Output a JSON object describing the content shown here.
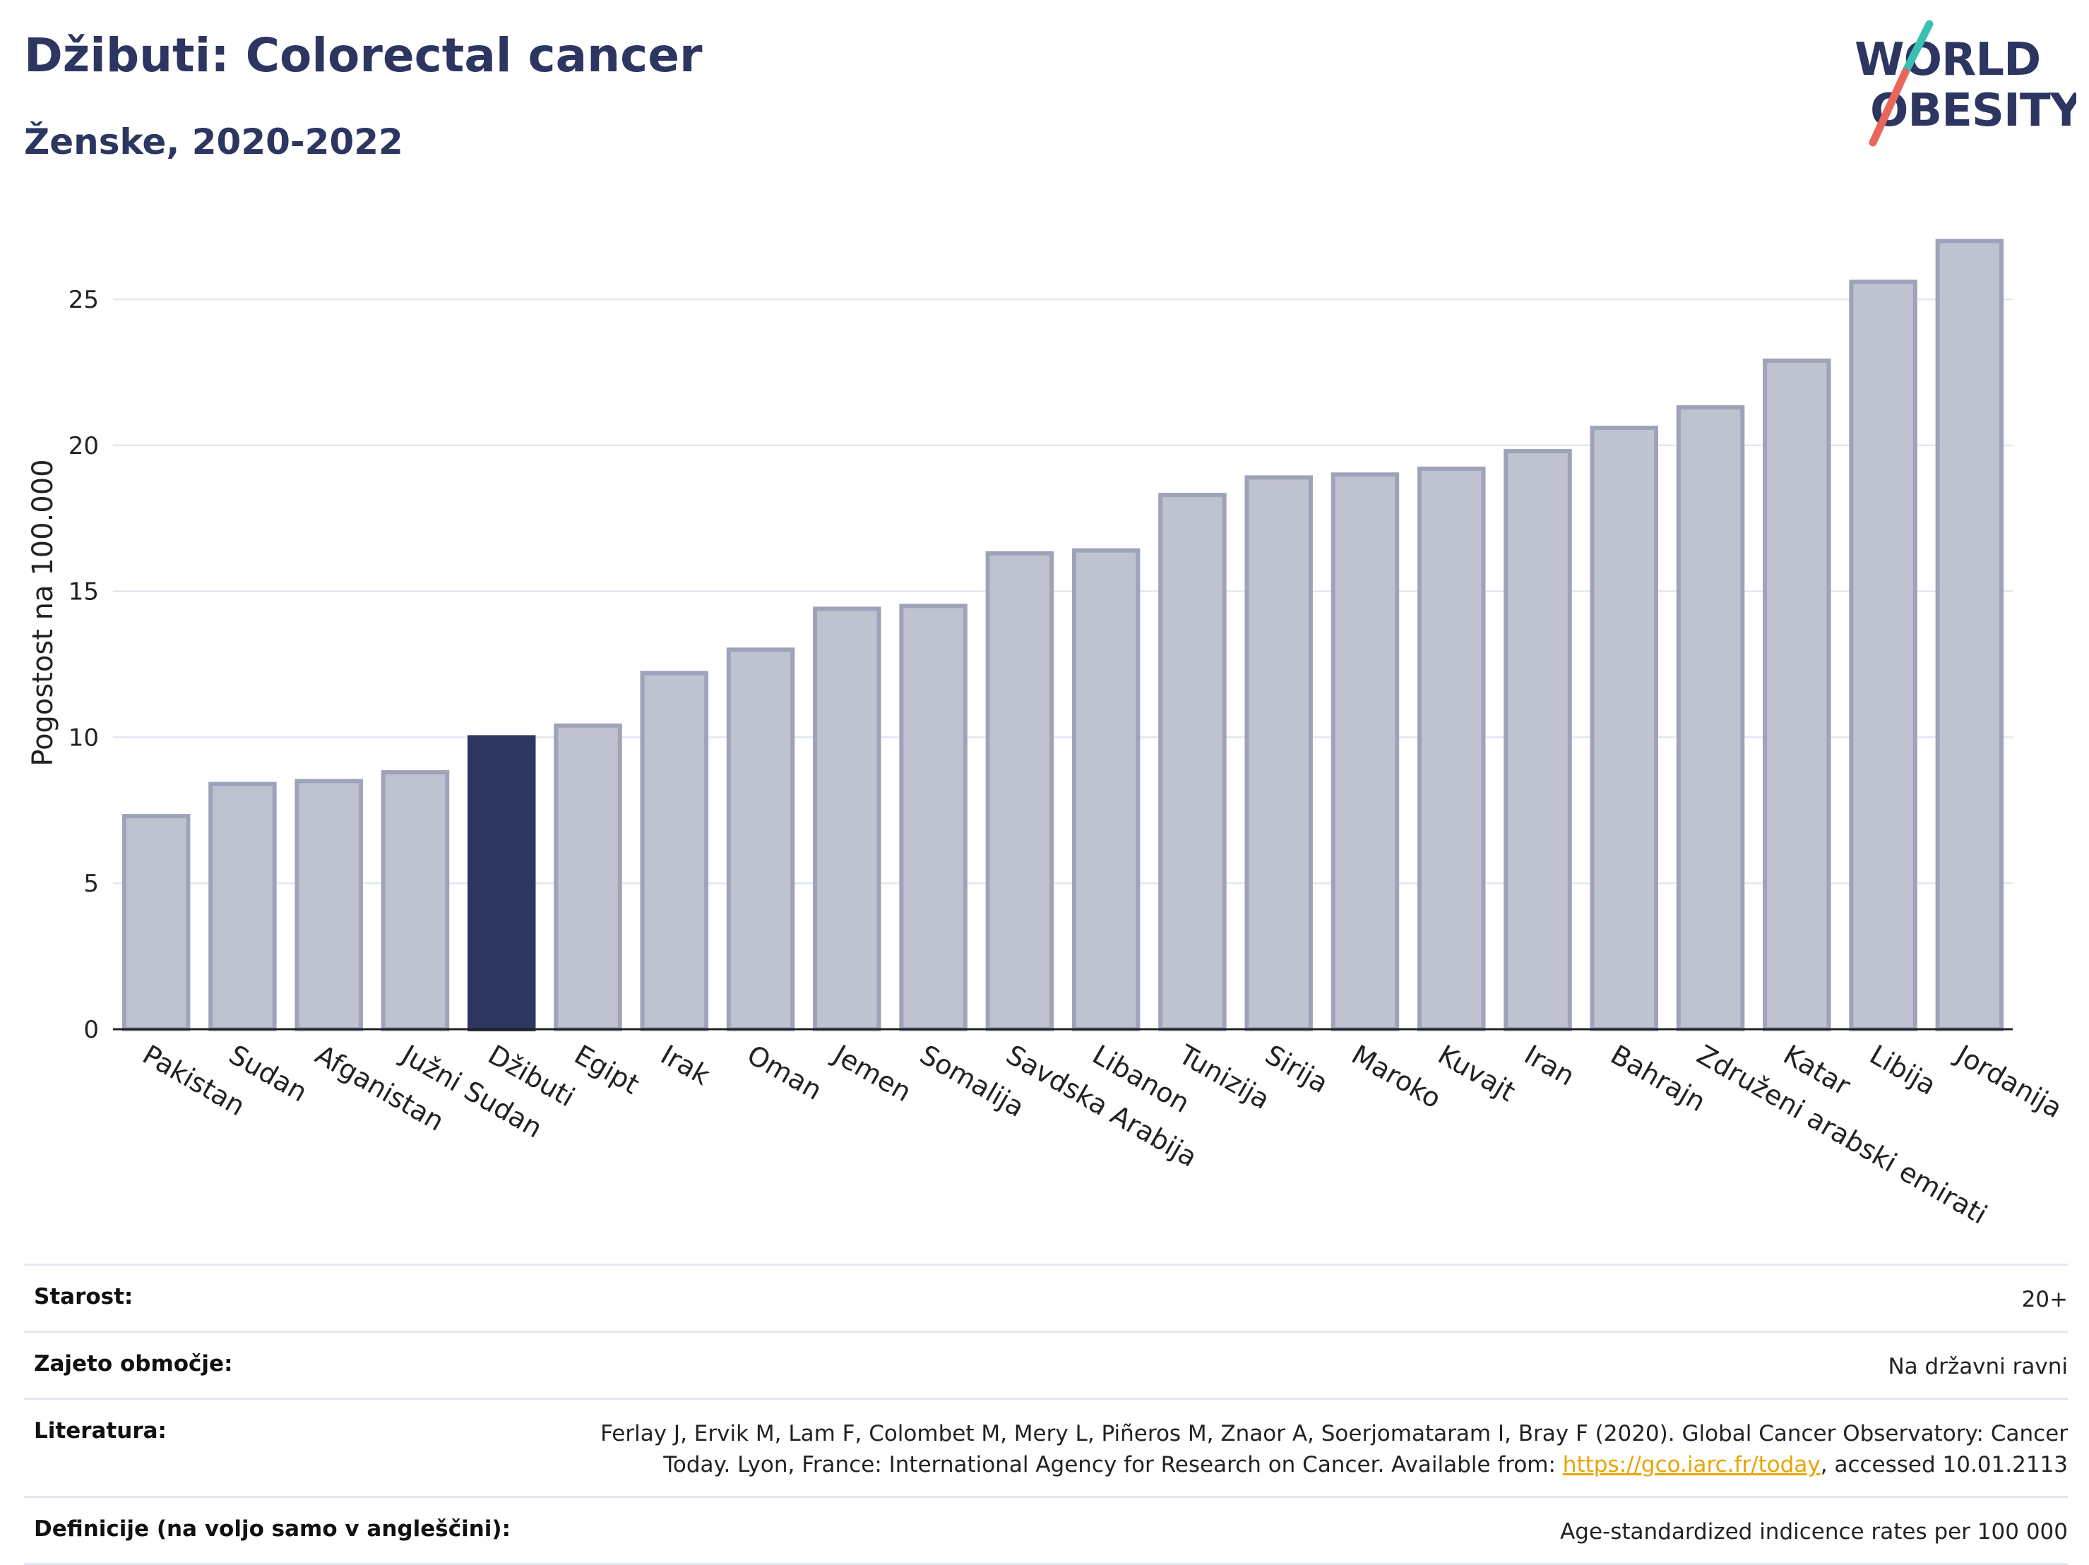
{
  "header": {
    "title": "Džibuti: Colorectal cancer",
    "subtitle": "Ženske, 2020-2022"
  },
  "logo": {
    "line1": "WORLD",
    "line2": "OBESITY",
    "accent_teal": "#3bbfb3",
    "accent_red": "#e8665a",
    "text_color": "#2c3660"
  },
  "chart_data": {
    "type": "bar",
    "ylabel": "Pogostost na 100.000",
    "ylim": [
      0,
      28
    ],
    "yticks": [
      0,
      5,
      10,
      15,
      20,
      25
    ],
    "grid": true,
    "highlight": "Džibuti",
    "highlight_color": "#2c3660",
    "bar_color": "#bfc2cf",
    "bar_edge_color": "#9ea3b9",
    "categories": [
      "Pakistan",
      "Sudan",
      "Afganistan",
      "Južni Sudan",
      "Džibuti",
      "Egipt",
      "Irak",
      "Oman",
      "Jemen",
      "Somalija",
      "Savdska Arabija",
      "Libanon",
      "Tunizija",
      "Sirija",
      "Maroko",
      "Kuvajt",
      "Iran",
      "Bahrajn",
      "Združeni arabski emirati",
      "Katar",
      "Libija",
      "Jordanija"
    ],
    "values": [
      7.3,
      8.4,
      8.5,
      8.8,
      10.0,
      10.4,
      12.2,
      13.0,
      14.4,
      14.5,
      16.3,
      16.4,
      18.3,
      18.9,
      19.0,
      19.2,
      19.8,
      20.6,
      21.3,
      22.9,
      25.6,
      27.0
    ]
  },
  "info": {
    "age_label": "Starost:",
    "age_value": "20+",
    "coverage_label": "Zajeto območje:",
    "coverage_value": "Na državni ravni",
    "ref_label": "Literatura:",
    "ref_text_1": "Ferlay J, Ervik M, Lam F, Colombet M, Mery L, Piñeros M, Znaor A, Soerjomataram I, Bray F (2020). Global Cancer Observatory: Cancer Today. Lyon, France: International Agency for Research on Cancer. Available from: ",
    "ref_link": "https://gco.iarc.fr/today",
    "ref_text_2": ", accessed 10.01.2113",
    "def_label": "Definicije (na voljo samo v angleščini):",
    "def_value": "Age-standardized indicence rates per 100 000"
  }
}
